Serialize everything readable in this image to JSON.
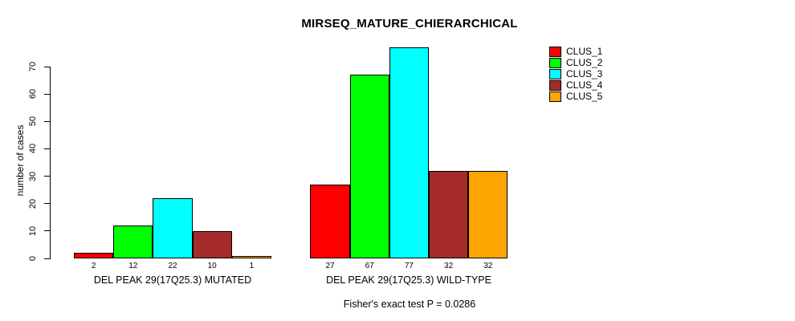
{
  "chart_data": {
    "type": "bar",
    "title": "MIRSEQ_MATURE_CHIERARCHICAL",
    "ylabel": "number of cases",
    "xlabel": "",
    "ylim": [
      0,
      70
    ],
    "yticks": [
      0,
      10,
      20,
      30,
      40,
      50,
      60,
      70
    ],
    "grid": false,
    "legend_position": "top-right",
    "categories": [
      "CLUS_1",
      "CLUS_2",
      "CLUS_3",
      "CLUS_4",
      "CLUS_5"
    ],
    "legend": [
      {
        "label": "CLUS_1",
        "color": "#FF0000"
      },
      {
        "label": "CLUS_2",
        "color": "#00FF00"
      },
      {
        "label": "CLUS_3",
        "color": "#00FFFF"
      },
      {
        "label": "CLUS_4",
        "color": "#A52A2A"
      },
      {
        "label": "CLUS_5",
        "color": "#FFA500"
      }
    ],
    "groups": [
      {
        "label": "DEL PEAK 29(17Q25.3) MUTATED",
        "values": [
          2,
          12,
          22,
          10,
          1
        ]
      },
      {
        "label": "DEL PEAK 29(17Q25.3) WILD-TYPE",
        "values": [
          27,
          67,
          77,
          32,
          32
        ]
      }
    ],
    "bar_value_labels_shown": true,
    "bar_border_color": "#000000",
    "footnote": "Fisher's exact test P = 0.0286"
  }
}
